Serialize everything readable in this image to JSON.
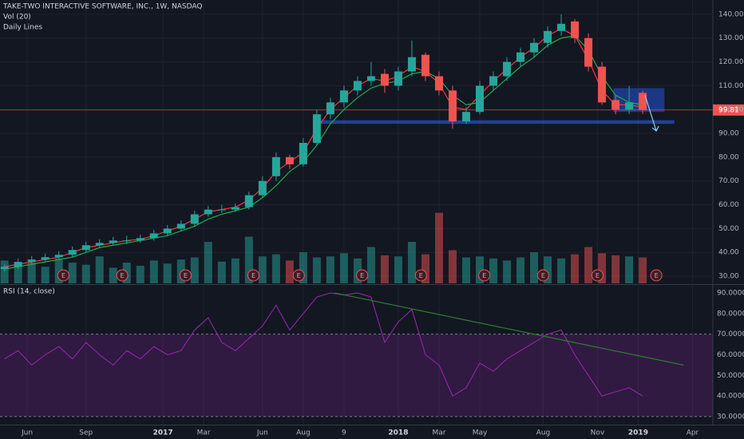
{
  "chart_data": {
    "type": "candlestick",
    "title": "TAKE-TWO INTERACTIVE SOFTWARE, INC., 1W, NASDAQ",
    "subtitle": "Daily Lines",
    "up_color": "#26a69a",
    "down_color": "#ef5350",
    "x": [
      0,
      3,
      6,
      9,
      12,
      15,
      18,
      21,
      24,
      27,
      30,
      33,
      36,
      39,
      42,
      45,
      48,
      51,
      54,
      57,
      60,
      63,
      66,
      69,
      72,
      75,
      78,
      81,
      84,
      87,
      90,
      93,
      96,
      99,
      102,
      105,
      108,
      111,
      114,
      117,
      120,
      123,
      126,
      129,
      132,
      135,
      138,
      141
    ],
    "xlim": [
      -1,
      156.5
    ],
    "xticks": [
      {
        "value": 5,
        "label": "Jun"
      },
      {
        "value": 18,
        "label": "Sep"
      },
      {
        "value": 35,
        "label": "2017"
      },
      {
        "value": 44,
        "label": "Mar"
      },
      {
        "value": 57,
        "label": "Jun"
      },
      {
        "value": 66,
        "label": "Aug"
      },
      {
        "value": 75,
        "label": "9"
      },
      {
        "value": 87,
        "label": "2018"
      },
      {
        "value": 96,
        "label": "Mar"
      },
      {
        "value": 105,
        "label": "May"
      },
      {
        "value": 119,
        "label": "Aug"
      },
      {
        "value": 131,
        "label": "Nov"
      },
      {
        "value": 140,
        "label": "2019"
      },
      {
        "value": 152,
        "label": "Apr"
      }
    ],
    "open": [
      33,
      34,
      36,
      37,
      38,
      39,
      41,
      43,
      44,
      45,
      45,
      46,
      48,
      50,
      52,
      56,
      58,
      58,
      59,
      64,
      72,
      80,
      77,
      86,
      98,
      103,
      108,
      112,
      115,
      110,
      116,
      123,
      114,
      108,
      95,
      99,
      110,
      114,
      120,
      124,
      128,
      133,
      137,
      130,
      118,
      104,
      100,
      107
    ],
    "high": [
      35,
      37.5,
      38.5,
      39.5,
      40.5,
      42.5,
      44.5,
      45.5,
      46.5,
      47,
      47.5,
      49.5,
      51.5,
      53.5,
      57.5,
      59.5,
      60,
      60.5,
      65.5,
      72,
      82,
      81,
      88,
      100,
      105,
      110,
      114,
      120,
      117,
      118,
      129,
      124,
      116,
      110,
      101,
      112,
      116,
      122,
      126,
      130,
      135,
      140,
      138,
      132,
      120,
      106,
      110,
      108
    ],
    "low": [
      32,
      33,
      35,
      36,
      37,
      38,
      40,
      42,
      43,
      43.5,
      44,
      45,
      47,
      49,
      51,
      55,
      56.5,
      57,
      58,
      63,
      70,
      75,
      76,
      85,
      96,
      101,
      106,
      110,
      107,
      108,
      114,
      112,
      106,
      92,
      94,
      98,
      108,
      112,
      118,
      122,
      126,
      131,
      128,
      116,
      102,
      98,
      98,
      98
    ],
    "close": [
      34,
      36,
      37,
      38,
      39,
      41,
      43,
      44,
      45,
      45,
      46,
      48,
      50,
      52,
      56,
      58,
      58,
      59,
      64,
      70,
      80,
      77,
      86,
      98,
      103,
      108,
      112,
      114,
      110,
      116,
      122,
      114,
      108,
      95,
      99,
      110,
      114,
      120,
      124,
      128,
      133,
      136,
      130,
      118,
      103,
      100,
      103,
      99.81
    ],
    "ylim": [
      27,
      146
    ],
    "yticks": [
      {
        "value": 30,
        "label": "30.00"
      },
      {
        "value": 40,
        "label": "40.00"
      },
      {
        "value": 50,
        "label": "50.00"
      },
      {
        "value": 60,
        "label": "60.00"
      },
      {
        "value": 70,
        "label": "70.00"
      },
      {
        "value": 80,
        "label": "80.00"
      },
      {
        "value": 90,
        "label": "90.00"
      },
      {
        "value": 100,
        "label": "100.00"
      },
      {
        "value": 110,
        "label": "110.00"
      },
      {
        "value": 120,
        "label": "120.00"
      },
      {
        "value": 130,
        "label": "130.00"
      },
      {
        "value": 140,
        "label": "140.00"
      }
    ],
    "last_price": {
      "value": 99.81,
      "color": "#ef5350"
    },
    "lines": [
      {
        "color": "#f23645",
        "values": [
          34,
          35,
          36,
          37,
          38,
          40,
          42,
          43,
          44,
          45,
          45.5,
          47,
          49,
          51,
          54,
          57,
          58,
          59,
          62,
          67,
          74,
          78,
          82,
          92,
          100,
          105,
          110,
          113,
          112,
          114,
          118,
          116,
          111,
          101,
          100,
          106,
          112,
          117,
          122,
          126,
          131,
          134,
          131,
          121,
          108,
          102,
          102,
          101
        ]
      },
      {
        "color": "#22ab4a",
        "values": [
          33,
          34,
          35,
          36,
          37,
          38,
          40,
          42,
          43,
          44,
          45,
          46,
          47,
          49,
          51,
          54,
          56,
          57.5,
          59,
          63,
          68,
          74,
          78,
          85,
          94,
          100,
          105,
          109,
          111,
          112,
          115,
          116,
          113,
          106,
          102,
          103,
          108,
          113,
          118,
          122,
          127,
          130,
          131,
          125,
          114,
          106,
          103,
          102
        ]
      }
    ],
    "volume": {
      "label": "Vol (20)",
      "values": [
        2.2,
        1.8,
        2.0,
        1.6,
        2.4,
        2.0,
        1.8,
        2.6,
        1.5,
        2.0,
        1.7,
        2.2,
        1.9,
        2.3,
        2.5,
        4.0,
        2.1,
        2.4,
        4.5,
        2.6,
        2.8,
        2.2,
        3.0,
        2.5,
        2.6,
        2.9,
        2.4,
        3.5,
        2.7,
        2.6,
        4.0,
        2.8,
        6.8,
        3.2,
        2.5,
        2.6,
        2.4,
        2.2,
        2.5,
        3.0,
        2.6,
        2.4,
        2.8,
        3.5,
        2.9,
        2.7,
        2.6,
        2.5
      ]
    },
    "earnings": {
      "label": "E",
      "x": [
        13,
        26,
        40,
        55,
        65,
        79,
        92,
        106,
        119,
        131,
        144
      ]
    },
    "zone": {
      "x": [
        134.5,
        145.8
      ],
      "y": [
        99,
        109
      ],
      "color": "#2962ff"
    },
    "support": {
      "x": [
        68.7,
        148
      ],
      "y": [
        94,
        95.5
      ],
      "color": "#2962ff"
    },
    "arrow": {
      "x": [
        141.5,
        144
      ],
      "y": [
        106,
        91
      ]
    },
    "rsi": {
      "label": "RSI (14, close)",
      "color": "#9c27b0",
      "values": [
        58,
        62,
        55,
        60,
        64,
        58,
        66,
        60,
        55,
        62,
        58,
        64,
        60,
        62,
        72,
        78,
        66,
        62,
        68,
        74,
        84,
        72,
        80,
        88,
        90,
        89,
        90,
        88,
        66,
        76,
        82,
        60,
        55,
        40,
        44,
        56,
        52,
        58,
        62,
        66,
        70,
        72,
        60,
        50,
        40,
        42,
        44,
        40
      ],
      "ylim": [
        26.1,
        93.5
      ],
      "yticks": [
        {
          "value": 30,
          "label": "30.0000"
        },
        {
          "value": 40,
          "label": "40.0000"
        },
        {
          "value": 50,
          "label": "50.0000"
        },
        {
          "value": 60,
          "label": "60.0000"
        },
        {
          "value": 70,
          "label": "70.0000"
        },
        {
          "value": 80,
          "label": "80.0000"
        },
        {
          "value": 90,
          "label": "90.0000"
        }
      ],
      "levels": [
        70,
        30
      ],
      "trendline": {
        "x": [
          73,
          150
        ],
        "y": [
          90,
          55
        ],
        "color": "#2e7d32"
      }
    }
  }
}
